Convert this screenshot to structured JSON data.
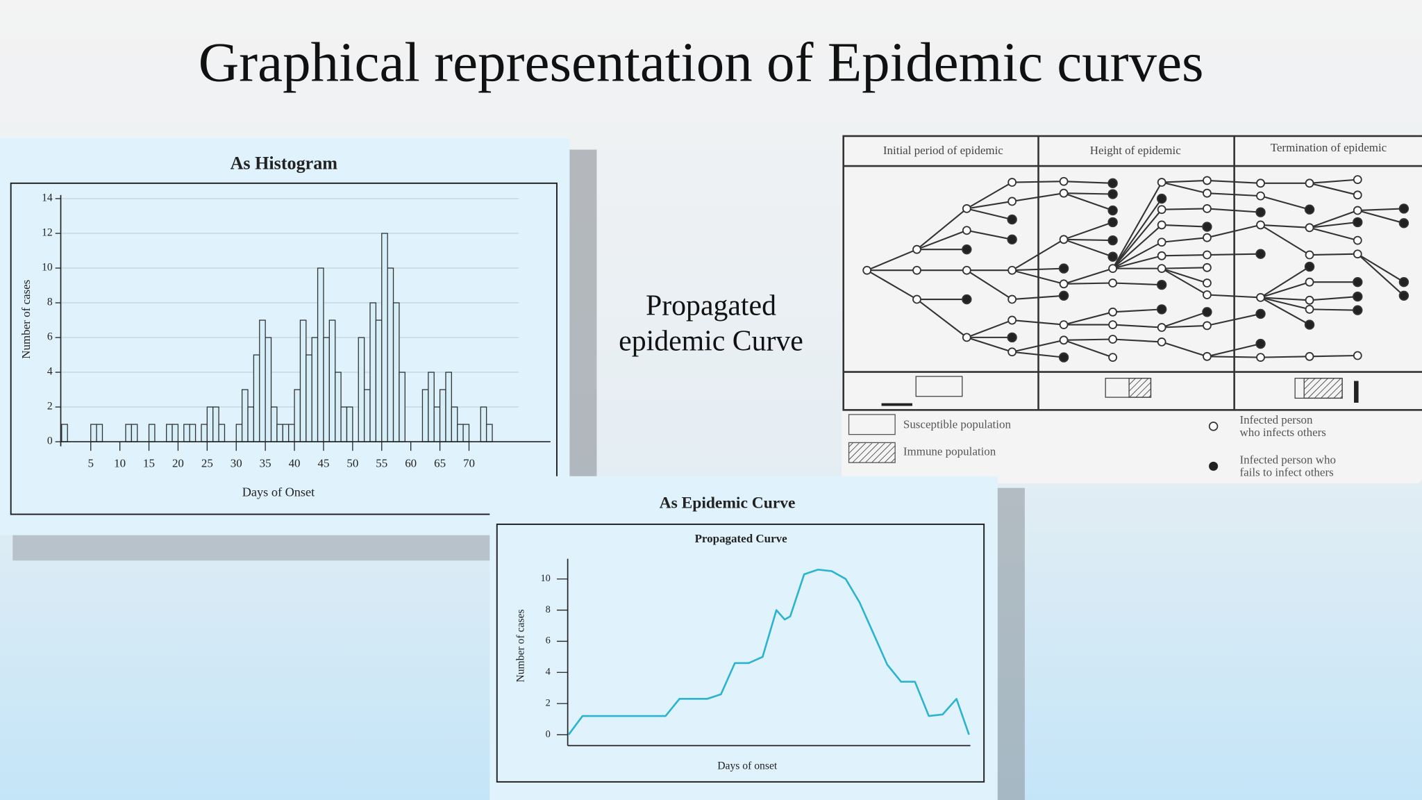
{
  "title": "Graphical representation of Epidemic curves",
  "label": [
    "Propagated",
    "epidemic Curve"
  ],
  "chart_data": [
    {
      "type": "histogram",
      "title": "As Histogram",
      "x_label": "Days of Onset",
      "y_label": "Number of cases",
      "bins": [
        0,
        1,
        2,
        3,
        4,
        5,
        6,
        7,
        8,
        9,
        10,
        11,
        12,
        13,
        14,
        15,
        16,
        17,
        18,
        19,
        20,
        21,
        22,
        23,
        24,
        25,
        26,
        27,
        28,
        29,
        30,
        31,
        32,
        33,
        34,
        35,
        36,
        37,
        38,
        39,
        40,
        41,
        42,
        43,
        44,
        45,
        46,
        47,
        48,
        49,
        50,
        51,
        52,
        53,
        54,
        55,
        56,
        57,
        58,
        59,
        60,
        61,
        62,
        63,
        64,
        65,
        66,
        67,
        68,
        69,
        70,
        71,
        72,
        73,
        74
      ],
      "counts": [
        1,
        0,
        0,
        0,
        0,
        1,
        1,
        0,
        0,
        0,
        0,
        1,
        1,
        0,
        0,
        1,
        0,
        0,
        1,
        1,
        0,
        1,
        1,
        0,
        1,
        2,
        2,
        1,
        0,
        0,
        1,
        3,
        2,
        5,
        7,
        6,
        2,
        1,
        1,
        1,
        3,
        7,
        5,
        6,
        10,
        6,
        7,
        4,
        2,
        2,
        0,
        6,
        3,
        8,
        7,
        12,
        10,
        8,
        4,
        0,
        0,
        0,
        3,
        4,
        2,
        3,
        4,
        2,
        1,
        1,
        0,
        0,
        2,
        1
      ],
      "color": "#d6eff9",
      "xlim": [
        0,
        84
      ],
      "xticks": [
        5,
        10,
        15,
        20,
        25,
        30,
        35,
        40,
        45,
        50,
        55,
        60,
        65,
        70
      ],
      "ylim": [
        0,
        14
      ],
      "yticks": [
        0,
        2,
        4,
        6,
        8,
        10,
        12,
        14
      ],
      "grid": true
    },
    {
      "type": "line",
      "title": "As Epidemic Curve",
      "subtitle": "Propagated Curve",
      "x_label": "Days of onset",
      "y_label": "Number of cases",
      "x": [
        0,
        1,
        2,
        3,
        4,
        5,
        6,
        7,
        8,
        9,
        10,
        11,
        12,
        13,
        14,
        15,
        15.6,
        16,
        17,
        18,
        19,
        20,
        21,
        22,
        23,
        24,
        25,
        26,
        27,
        28,
        28.9
      ],
      "values": [
        0,
        1.2,
        1.2,
        1.2,
        1.2,
        1.2,
        1.2,
        1.2,
        2.3,
        2.3,
        2.3,
        2.6,
        4.6,
        4.6,
        5.0,
        8.0,
        7.4,
        7.6,
        10.3,
        10.6,
        10.5,
        10.0,
        8.5,
        6.5,
        4.5,
        3.4,
        3.4,
        1.2,
        1.3,
        2.3,
        0
      ],
      "color": "#2bb3cf",
      "xlim": [
        0,
        29
      ],
      "ylim": [
        0,
        11.3
      ],
      "yticks": [
        0,
        2,
        4,
        6,
        8,
        10
      ]
    }
  ],
  "diagram": {
    "headers": [
      "Initial period of epidemic",
      "Height of epidemic",
      "Termination of epidemic"
    ],
    "legend": {
      "susceptible": "Susceptible population",
      "immune": "Immune population",
      "infects": [
        "Infected person",
        "who infects others"
      ],
      "fails": [
        "Infected person who",
        "fails to infect others"
      ]
    }
  }
}
